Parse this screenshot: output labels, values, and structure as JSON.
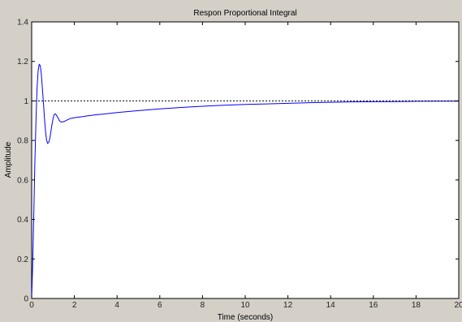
{
  "chart_data": {
    "type": "line",
    "title": "Respon Proportional Integral",
    "xlabel": "Time (seconds)",
    "ylabel": "Amplitude",
    "xlim": [
      0,
      20
    ],
    "ylim": [
      0,
      1.4
    ],
    "xticks": [
      0,
      2,
      4,
      6,
      8,
      10,
      12,
      14,
      16,
      18,
      20
    ],
    "yticks": [
      0,
      0.2,
      0.4,
      0.6,
      0.8,
      1,
      1.2,
      1.4
    ],
    "xtick_labels": [
      "0",
      "2",
      "4",
      "6",
      "8",
      "10",
      "12",
      "14",
      "16",
      "18",
      "20"
    ],
    "ytick_labels": [
      "0",
      "0.2",
      "0.4",
      "0.6",
      "0.8",
      "1",
      "1.2",
      "1.4"
    ],
    "grid": false,
    "series": [
      {
        "color": "#0000ff",
        "style": "solid",
        "x": [
          0,
          0.05,
          0.1,
          0.15,
          0.2,
          0.25,
          0.3,
          0.35,
          0.4,
          0.45,
          0.5,
          0.55,
          0.6,
          0.65,
          0.7,
          0.75,
          0.8,
          0.85,
          0.9,
          0.95,
          1.0,
          1.05,
          1.1,
          1.15,
          1.2,
          1.25,
          1.3,
          1.35,
          1.4,
          1.5,
          1.6,
          1.7,
          1.8,
          1.9,
          2.0,
          2.2,
          2.4,
          2.6,
          2.8,
          3.0,
          3.5,
          4.0,
          5.0,
          6.0,
          7.0,
          8.0,
          9.0,
          10.0,
          11.0,
          12.0,
          13.0,
          14.0,
          15.0,
          16.0,
          17.0,
          18.0,
          19.0,
          20.0
        ],
        "y": [
          0,
          0.18,
          0.42,
          0.68,
          0.9,
          1.06,
          1.15,
          1.185,
          1.18,
          1.14,
          1.07,
          0.99,
          0.91,
          0.845,
          0.8,
          0.785,
          0.79,
          0.81,
          0.845,
          0.88,
          0.91,
          0.93,
          0.935,
          0.93,
          0.92,
          0.91,
          0.9,
          0.895,
          0.893,
          0.895,
          0.9,
          0.906,
          0.91,
          0.913,
          0.915,
          0.918,
          0.921,
          0.924,
          0.927,
          0.93,
          0.935,
          0.941,
          0.951,
          0.96,
          0.967,
          0.973,
          0.978,
          0.982,
          0.985,
          0.988,
          0.991,
          0.993,
          0.995,
          0.996,
          0.997,
          0.998,
          0.999,
          0.999
        ]
      },
      {
        "color": "#000000",
        "style": "dotted",
        "x": [
          0,
          20
        ],
        "y": [
          1,
          1
        ]
      }
    ]
  }
}
